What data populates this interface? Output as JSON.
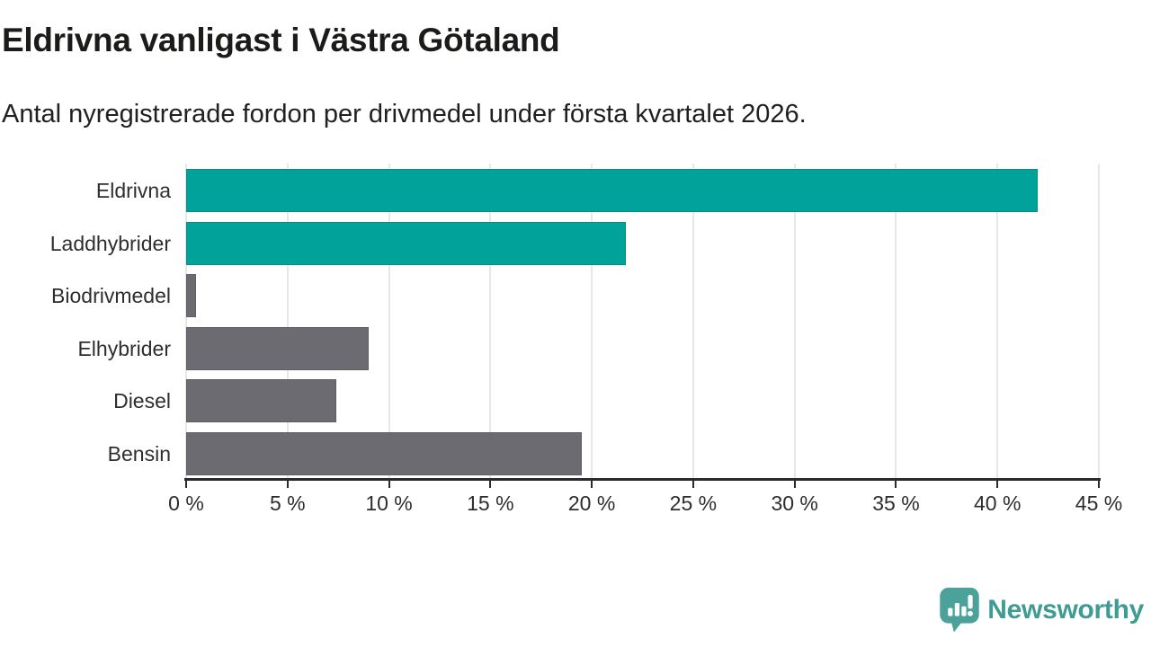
{
  "header": {
    "title": "Eldrivna vanligast i Västra Götaland",
    "subtitle": "Antal nyregistrerade fordon per drivmedel under första kvartalet 2026."
  },
  "chart_data": {
    "type": "bar",
    "orientation": "horizontal",
    "title": "Eldrivna vanligast i Västra Götaland",
    "subtitle": "Antal nyregistrerade fordon per drivmedel under första kvartalet 2026.",
    "categories": [
      "Eldrivna",
      "Laddhybrider",
      "Biodrivmedel",
      "Elhybrider",
      "Diesel",
      "Bensin"
    ],
    "values": [
      42,
      21.7,
      0.5,
      9,
      7.4,
      19.5
    ],
    "unit": "%",
    "bar_colors": [
      "#00a29a",
      "#00a29a",
      "#6c6b71",
      "#6c6b71",
      "#6c6b71",
      "#6c6b71"
    ],
    "highlight_color": "#00a29a",
    "default_color": "#6c6b71",
    "xlim": [
      0,
      45
    ],
    "x_ticks": [
      0,
      5,
      10,
      15,
      20,
      25,
      30,
      35,
      40,
      45
    ],
    "x_tick_labels": [
      "0 %",
      "5 %",
      "10 %",
      "15 %",
      "20 %",
      "25 %",
      "30 %",
      "35 %",
      "40 %",
      "45 %"
    ],
    "grid": true,
    "legend": "none"
  },
  "footer": {
    "brand": "Newsworthy",
    "brand_color": "#3f9c95"
  }
}
